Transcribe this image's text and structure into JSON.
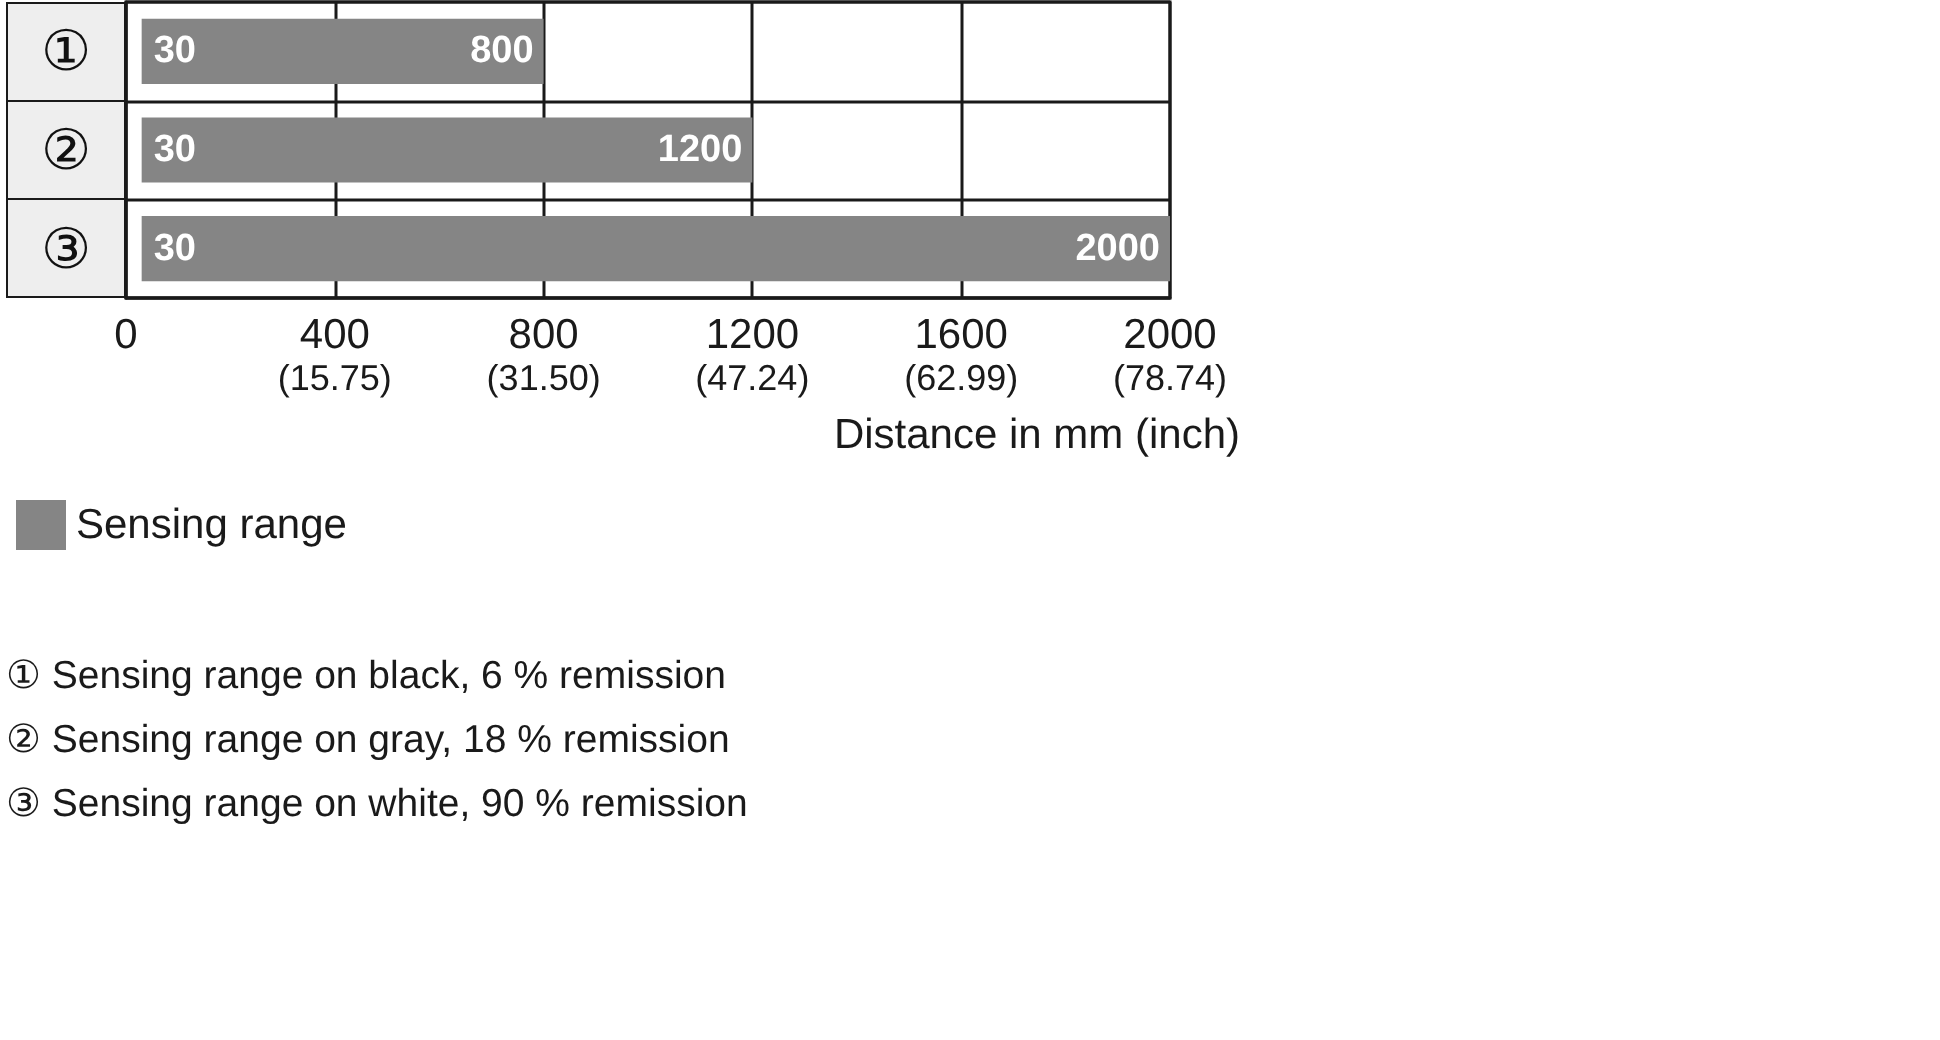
{
  "chart_data": {
    "type": "bar",
    "orientation": "horizontal",
    "categories": [
      "①",
      "②",
      "③"
    ],
    "series": [
      {
        "name": "Sensing range",
        "color": "#858585",
        "values": [
          770,
          1170,
          1970
        ],
        "base": [
          30,
          30,
          30
        ]
      }
    ],
    "xlim": [
      0,
      2000
    ],
    "xticks": [
      0,
      400,
      800,
      1200,
      1600,
      2000
    ],
    "x2lim": [
      0,
      78.74
    ],
    "x2ticks": [
      {
        "value": 15.75,
        "label": "(15.75)"
      },
      {
        "value": 31.5,
        "label": "(31.50)"
      },
      {
        "value": 47.24,
        "label": "(47.24)"
      },
      {
        "value": 62.99,
        "label": "(62.99)"
      },
      {
        "value": 78.74,
        "label": "(78.74)"
      }
    ],
    "xlabel": "Distance in mm (inch)",
    "grid": true,
    "legend": "bottom left",
    "annotations": [
      {
        "text": "30",
        "x": 30,
        "y": "①"
      },
      {
        "text": "800",
        "x": 800,
        "y": "①"
      },
      {
        "text": "30",
        "x": 30,
        "y": "②"
      },
      {
        "text": "1200",
        "x": 1200,
        "y": "②"
      },
      {
        "text": "30",
        "x": 30,
        "y": "③"
      },
      {
        "text": "2000",
        "x": 2000,
        "y": "③"
      },
      "① Sensing range on black, 6 % remission",
      "② Sensing range on gray, 18 % remission",
      "③ Sensing range on white, 90 % remission"
    ]
  }
}
